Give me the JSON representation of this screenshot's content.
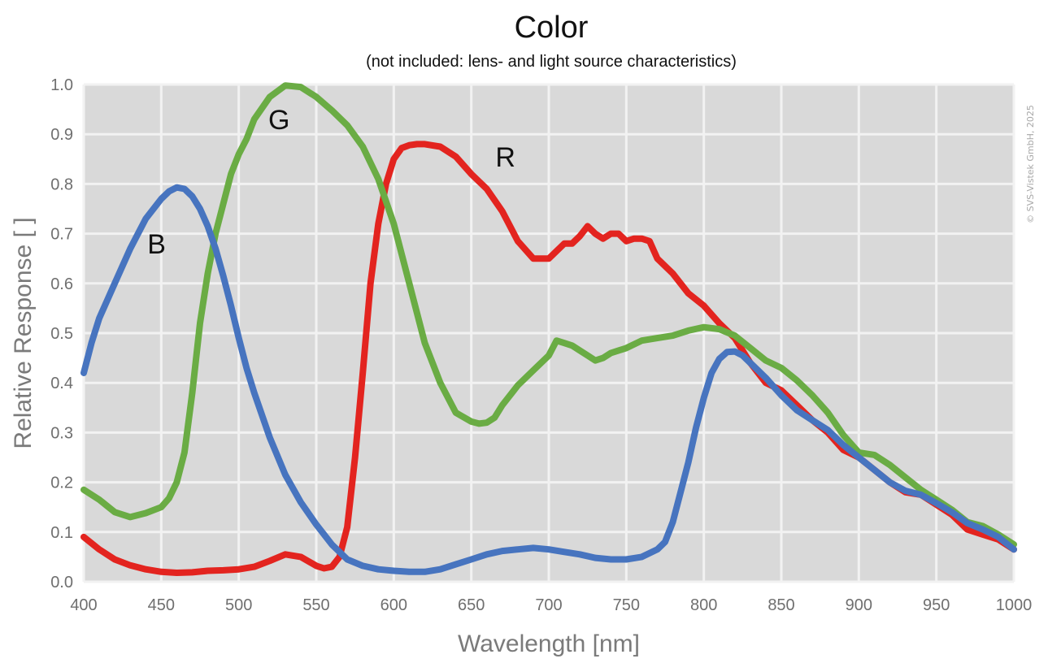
{
  "chart_data": {
    "type": "line",
    "title": "Color",
    "subtitle": "(not included: lens- and light source characteristics)",
    "xlabel": "Wavelength [nm]",
    "ylabel": "Relative Response [ ]",
    "xlim": [
      400,
      1000
    ],
    "ylim": [
      0.0,
      1.0
    ],
    "x_ticks": [
      400,
      450,
      500,
      550,
      600,
      650,
      700,
      750,
      800,
      850,
      900,
      950,
      1000
    ],
    "y_ticks": [
      "0.0",
      "0.1",
      "0.2",
      "0.3",
      "0.4",
      "0.5",
      "0.6",
      "0.7",
      "0.8",
      "0.9",
      "1.0"
    ],
    "grid": true,
    "background_color": "#d9d9d9",
    "grid_color": "#f2f2f2",
    "copyright": "© SVS-Vistek GmbH, 2025",
    "series": [
      {
        "name": "R",
        "color": "#e3241f",
        "x": [
          400,
          410,
          420,
          430,
          440,
          450,
          460,
          470,
          480,
          490,
          500,
          510,
          520,
          530,
          540,
          550,
          555,
          560,
          565,
          570,
          575,
          580,
          585,
          590,
          595,
          600,
          605,
          610,
          615,
          620,
          630,
          640,
          650,
          660,
          670,
          680,
          690,
          700,
          710,
          715,
          720,
          725,
          730,
          735,
          740,
          745,
          750,
          755,
          760,
          765,
          770,
          780,
          790,
          800,
          810,
          820,
          830,
          840,
          850,
          860,
          870,
          880,
          890,
          900,
          910,
          920,
          930,
          940,
          950,
          960,
          970,
          980,
          990,
          1000
        ],
        "y": [
          0.09,
          0.065,
          0.045,
          0.033,
          0.025,
          0.02,
          0.018,
          0.019,
          0.022,
          0.023,
          0.025,
          0.03,
          0.042,
          0.055,
          0.05,
          0.032,
          0.027,
          0.03,
          0.05,
          0.11,
          0.25,
          0.42,
          0.6,
          0.72,
          0.8,
          0.85,
          0.872,
          0.878,
          0.88,
          0.88,
          0.875,
          0.855,
          0.82,
          0.79,
          0.745,
          0.685,
          0.65,
          0.65,
          0.68,
          0.68,
          0.695,
          0.715,
          0.7,
          0.69,
          0.7,
          0.7,
          0.685,
          0.69,
          0.69,
          0.685,
          0.65,
          0.62,
          0.58,
          0.555,
          0.52,
          0.49,
          0.44,
          0.4,
          0.385,
          0.355,
          0.325,
          0.3,
          0.265,
          0.25,
          0.225,
          0.2,
          0.18,
          0.175,
          0.155,
          0.135,
          0.105,
          0.095,
          0.085,
          0.065
        ]
      },
      {
        "name": "G",
        "color": "#6aac44",
        "x": [
          400,
          410,
          420,
          430,
          440,
          450,
          455,
          460,
          465,
          470,
          475,
          480,
          485,
          490,
          495,
          500,
          505,
          510,
          520,
          530,
          540,
          550,
          560,
          570,
          580,
          590,
          600,
          610,
          620,
          630,
          640,
          650,
          655,
          660,
          665,
          670,
          680,
          690,
          700,
          705,
          710,
          715,
          720,
          725,
          730,
          735,
          740,
          745,
          750,
          760,
          770,
          780,
          790,
          800,
          810,
          820,
          830,
          840,
          850,
          860,
          870,
          880,
          890,
          900,
          910,
          920,
          930,
          940,
          950,
          960,
          970,
          980,
          990,
          1000
        ],
        "y": [
          0.185,
          0.165,
          0.14,
          0.13,
          0.138,
          0.15,
          0.168,
          0.2,
          0.26,
          0.38,
          0.52,
          0.62,
          0.7,
          0.76,
          0.82,
          0.86,
          0.89,
          0.93,
          0.975,
          0.998,
          0.995,
          0.975,
          0.948,
          0.918,
          0.875,
          0.81,
          0.72,
          0.6,
          0.48,
          0.4,
          0.34,
          0.322,
          0.318,
          0.32,
          0.33,
          0.355,
          0.395,
          0.425,
          0.455,
          0.485,
          0.48,
          0.475,
          0.465,
          0.455,
          0.445,
          0.45,
          0.46,
          0.465,
          0.47,
          0.485,
          0.49,
          0.495,
          0.505,
          0.512,
          0.508,
          0.495,
          0.47,
          0.445,
          0.43,
          0.405,
          0.375,
          0.34,
          0.295,
          0.26,
          0.255,
          0.235,
          0.21,
          0.185,
          0.165,
          0.145,
          0.12,
          0.112,
          0.095,
          0.075
        ]
      },
      {
        "name": "B",
        "color": "#4774bf",
        "x": [
          400,
          405,
          410,
          420,
          430,
          440,
          450,
          455,
          460,
          465,
          470,
          475,
          480,
          485,
          490,
          495,
          500,
          505,
          510,
          520,
          530,
          540,
          550,
          560,
          570,
          580,
          590,
          600,
          610,
          620,
          630,
          640,
          650,
          660,
          670,
          680,
          690,
          700,
          710,
          720,
          730,
          740,
          750,
          760,
          770,
          775,
          780,
          785,
          790,
          795,
          800,
          805,
          810,
          815,
          820,
          825,
          830,
          840,
          850,
          860,
          870,
          880,
          890,
          900,
          910,
          920,
          930,
          940,
          950,
          960,
          970,
          980,
          990,
          1000
        ],
        "y": [
          0.42,
          0.48,
          0.53,
          0.6,
          0.67,
          0.73,
          0.77,
          0.785,
          0.793,
          0.79,
          0.775,
          0.75,
          0.715,
          0.67,
          0.615,
          0.555,
          0.49,
          0.43,
          0.38,
          0.29,
          0.215,
          0.16,
          0.115,
          0.075,
          0.045,
          0.032,
          0.025,
          0.022,
          0.02,
          0.02,
          0.025,
          0.035,
          0.045,
          0.055,
          0.062,
          0.065,
          0.068,
          0.065,
          0.06,
          0.055,
          0.048,
          0.045,
          0.045,
          0.05,
          0.065,
          0.08,
          0.12,
          0.18,
          0.24,
          0.31,
          0.37,
          0.42,
          0.448,
          0.462,
          0.463,
          0.455,
          0.44,
          0.41,
          0.375,
          0.345,
          0.325,
          0.305,
          0.275,
          0.25,
          0.225,
          0.2,
          0.183,
          0.175,
          0.158,
          0.14,
          0.118,
          0.105,
          0.09,
          0.065
        ]
      }
    ],
    "series_label_positions": [
      {
        "name": "B",
        "x": 447,
        "y": 0.66
      },
      {
        "name": "G",
        "x": 526,
        "y": 0.91
      },
      {
        "name": "R",
        "x": 672,
        "y": 0.835
      }
    ]
  }
}
